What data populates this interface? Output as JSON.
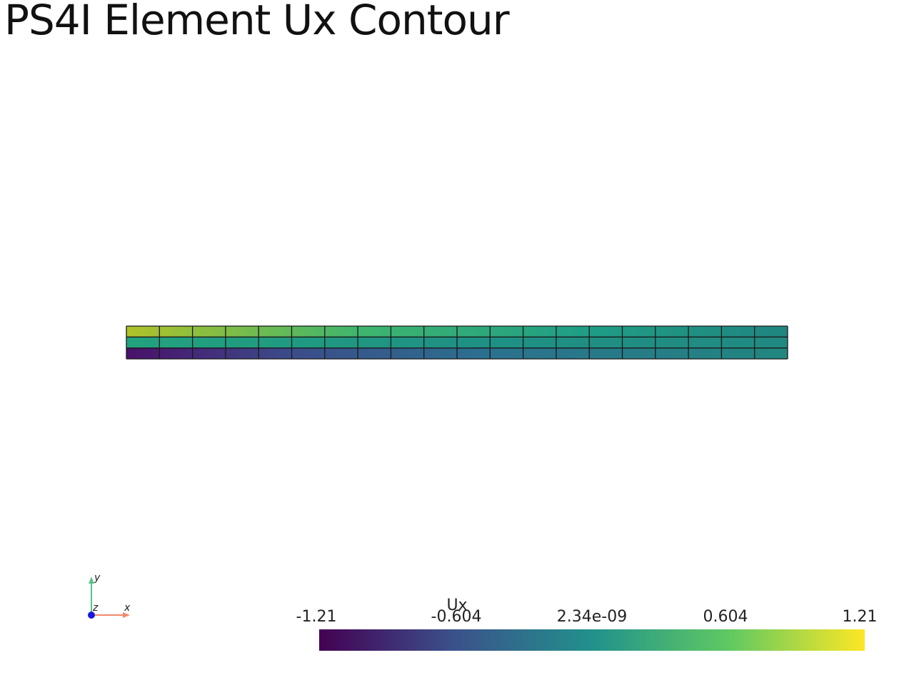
{
  "title": "PS4I Element Ux Contour",
  "mesh": {
    "columns": 20,
    "rows": 3,
    "field": "Ux",
    "left_top_value": 1.0,
    "left_bottom_value": -1.21,
    "right_value": 0.0
  },
  "orientation_axes": {
    "x_label": "x",
    "y_label": "y",
    "z_label": "z",
    "x_color": "#f08a6a",
    "y_color": "#5cc28a",
    "z_color": "#1a1adb"
  },
  "colorbar": {
    "title": "Ux",
    "ticks": [
      "-1.21",
      "-0.604",
      "2.34e-09",
      "0.604",
      "1.21"
    ],
    "min": -1.21,
    "max": 1.21,
    "colormap": [
      "#440154",
      "#3b528b",
      "#21918c",
      "#5ec962",
      "#fde725"
    ]
  }
}
